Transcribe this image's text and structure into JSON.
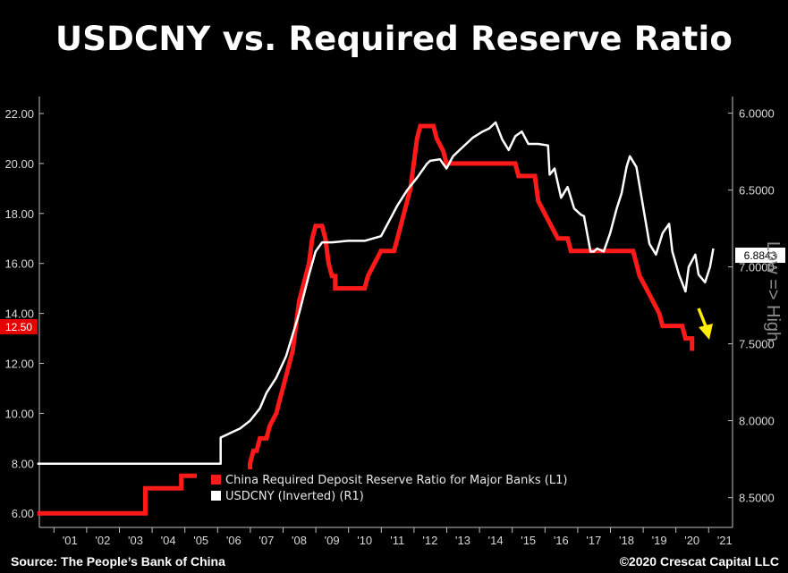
{
  "chart_data": {
    "type": "line",
    "title": "USDCNY vs. Required Reserve Ratio",
    "x_ticks": [
      "'01",
      "'02",
      "'03",
      "'04",
      "'05",
      "'06",
      "'07",
      "'08",
      "'09",
      "'10",
      "'11",
      "'12",
      "'13",
      "'14",
      "'15",
      "'16",
      "'17",
      "'18",
      "'19",
      "'20",
      "'21"
    ],
    "y_left": {
      "ticks": [
        "22.00",
        "20.00",
        "18.00",
        "16.00",
        "14.00",
        "12.00",
        "10.00",
        "8.00",
        "6.00"
      ],
      "lim": [
        5.5,
        22.5
      ]
    },
    "y_right": {
      "ticks": [
        "6.0000",
        "6.5000",
        "7.0000",
        "7.5000",
        "8.0000",
        "8.5000"
      ],
      "lim": [
        5.95,
        8.53
      ],
      "inverted": true,
      "label": "Low => High"
    },
    "last_values": {
      "left": "12.50",
      "right": "6.8843"
    },
    "legend": {
      "position": "bottom-center"
    },
    "series": [
      {
        "name": "China Required Deposit Reserve Ratio for Major Banks (L1)",
        "axis": "left",
        "color": "#ff1a1a",
        "points": [
          [
            2000.0,
            6.0
          ],
          [
            2003.3,
            6.0
          ],
          [
            2003.3,
            7.0
          ],
          [
            2004.4,
            7.0
          ],
          [
            2004.4,
            7.5
          ],
          [
            2006.5,
            7.5
          ],
          [
            2006.5,
            8.0
          ],
          [
            2006.6,
            8.5
          ],
          [
            2006.7,
            8.5
          ],
          [
            2006.8,
            9.0
          ],
          [
            2007.0,
            9.0
          ],
          [
            2007.1,
            9.5
          ],
          [
            2007.3,
            10.0
          ],
          [
            2007.4,
            10.5
          ],
          [
            2007.5,
            11.0
          ],
          [
            2007.6,
            11.5
          ],
          [
            2007.7,
            12.0
          ],
          [
            2007.8,
            12.5
          ],
          [
            2007.9,
            13.5
          ],
          [
            2008.0,
            14.5
          ],
          [
            2008.1,
            15.0
          ],
          [
            2008.2,
            15.5
          ],
          [
            2008.3,
            16.0
          ],
          [
            2008.4,
            17.0
          ],
          [
            2008.5,
            17.5
          ],
          [
            2008.7,
            17.5
          ],
          [
            2008.8,
            17.0
          ],
          [
            2008.9,
            16.0
          ],
          [
            2009.0,
            15.5
          ],
          [
            2009.1,
            15.5
          ],
          [
            2009.1,
            15.0
          ],
          [
            2010.0,
            15.0
          ],
          [
            2010.1,
            15.5
          ],
          [
            2010.3,
            16.0
          ],
          [
            2010.5,
            16.5
          ],
          [
            2010.9,
            16.5
          ],
          [
            2011.0,
            17.0
          ],
          [
            2011.1,
            17.5
          ],
          [
            2011.2,
            18.0
          ],
          [
            2011.3,
            18.5
          ],
          [
            2011.4,
            19.0
          ],
          [
            2011.5,
            20.0
          ],
          [
            2011.6,
            21.0
          ],
          [
            2011.7,
            21.5
          ],
          [
            2012.1,
            21.5
          ],
          [
            2012.2,
            21.0
          ],
          [
            2012.4,
            20.5
          ],
          [
            2012.5,
            20.0
          ],
          [
            2014.6,
            20.0
          ],
          [
            2014.7,
            19.5
          ],
          [
            2015.2,
            19.5
          ],
          [
            2015.3,
            18.5
          ],
          [
            2015.5,
            18.0
          ],
          [
            2015.7,
            17.5
          ],
          [
            2015.9,
            17.0
          ],
          [
            2016.2,
            17.0
          ],
          [
            2016.3,
            16.5
          ],
          [
            2018.2,
            16.5
          ],
          [
            2018.3,
            16.0
          ],
          [
            2018.4,
            15.5
          ],
          [
            2018.6,
            15.0
          ],
          [
            2018.8,
            14.5
          ],
          [
            2019.0,
            14.0
          ],
          [
            2019.1,
            13.5
          ],
          [
            2019.7,
            13.5
          ],
          [
            2019.8,
            13.0
          ],
          [
            2020.0,
            13.0
          ],
          [
            2020.0,
            12.5
          ]
        ]
      },
      {
        "name": "USDCNY (Inverted) (R1)",
        "axis": "right",
        "color": "#ffffff",
        "points": [
          [
            2000.0,
            8.28
          ],
          [
            2005.6,
            8.28
          ],
          [
            2005.6,
            8.11
          ],
          [
            2005.9,
            8.08
          ],
          [
            2006.2,
            8.05
          ],
          [
            2006.5,
            8.0
          ],
          [
            2006.8,
            7.92
          ],
          [
            2007.0,
            7.82
          ],
          [
            2007.3,
            7.72
          ],
          [
            2007.6,
            7.58
          ],
          [
            2008.0,
            7.3
          ],
          [
            2008.3,
            7.05
          ],
          [
            2008.5,
            6.9
          ],
          [
            2008.7,
            6.84
          ],
          [
            2009.0,
            6.84
          ],
          [
            2009.5,
            6.83
          ],
          [
            2010.0,
            6.83
          ],
          [
            2010.5,
            6.8
          ],
          [
            2010.8,
            6.68
          ],
          [
            2011.0,
            6.6
          ],
          [
            2011.3,
            6.5
          ],
          [
            2011.6,
            6.42
          ],
          [
            2011.9,
            6.33
          ],
          [
            2012.0,
            6.31
          ],
          [
            2012.3,
            6.3
          ],
          [
            2012.5,
            6.36
          ],
          [
            2012.7,
            6.28
          ],
          [
            2013.0,
            6.22
          ],
          [
            2013.3,
            6.16
          ],
          [
            2013.6,
            6.12
          ],
          [
            2013.8,
            6.1
          ],
          [
            2014.0,
            6.06
          ],
          [
            2014.2,
            6.17
          ],
          [
            2014.4,
            6.24
          ],
          [
            2014.6,
            6.15
          ],
          [
            2014.8,
            6.12
          ],
          [
            2015.0,
            6.2
          ],
          [
            2015.3,
            6.2
          ],
          [
            2015.6,
            6.21
          ],
          [
            2015.65,
            6.4
          ],
          [
            2015.8,
            6.36
          ],
          [
            2016.0,
            6.55
          ],
          [
            2016.2,
            6.48
          ],
          [
            2016.4,
            6.62
          ],
          [
            2016.6,
            6.66
          ],
          [
            2016.7,
            6.67
          ],
          [
            2016.9,
            6.9
          ],
          [
            2017.0,
            6.9
          ],
          [
            2017.1,
            6.88
          ],
          [
            2017.3,
            6.9
          ],
          [
            2017.5,
            6.78
          ],
          [
            2017.7,
            6.62
          ],
          [
            2017.85,
            6.52
          ],
          [
            2018.0,
            6.35
          ],
          [
            2018.1,
            6.28
          ],
          [
            2018.3,
            6.35
          ],
          [
            2018.5,
            6.6
          ],
          [
            2018.7,
            6.85
          ],
          [
            2018.9,
            6.92
          ],
          [
            2019.1,
            6.78
          ],
          [
            2019.3,
            6.72
          ],
          [
            2019.4,
            6.9
          ],
          [
            2019.6,
            7.05
          ],
          [
            2019.8,
            7.16
          ],
          [
            2019.9,
            7.0
          ],
          [
            2020.1,
            6.92
          ],
          [
            2020.2,
            7.05
          ],
          [
            2020.4,
            7.1
          ],
          [
            2020.55,
            7.0
          ],
          [
            2020.65,
            6.88
          ]
        ]
      }
    ]
  },
  "source_text": "Source: The People’s Bank of China",
  "copyright_text": "©2020 Crescat Capital LLC"
}
